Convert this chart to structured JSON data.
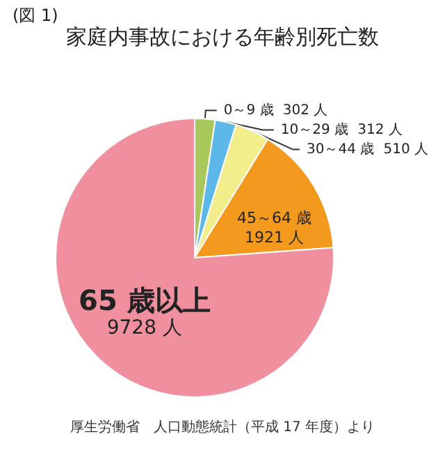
{
  "chart_data": {
    "type": "pie",
    "title": "家庭内事故における年齢別死亡数",
    "categories": [
      "0～9 歳",
      "10～29 歳",
      "30～44 歳",
      "45～64 歳",
      "65 歳以上"
    ],
    "values": [
      302,
      312,
      510,
      1921,
      9728
    ],
    "value_labels": [
      "302 人",
      "312 人",
      "510 人",
      "1921 人",
      "9728 人"
    ],
    "colors": [
      "#a8c95a",
      "#5bb8e8",
      "#f3ee8c",
      "#f39a1e",
      "#f0909f"
    ],
    "annotations": [
      "(図 1)",
      "厚生労働省　人口動態統計（平成 17 年度）より"
    ]
  }
}
